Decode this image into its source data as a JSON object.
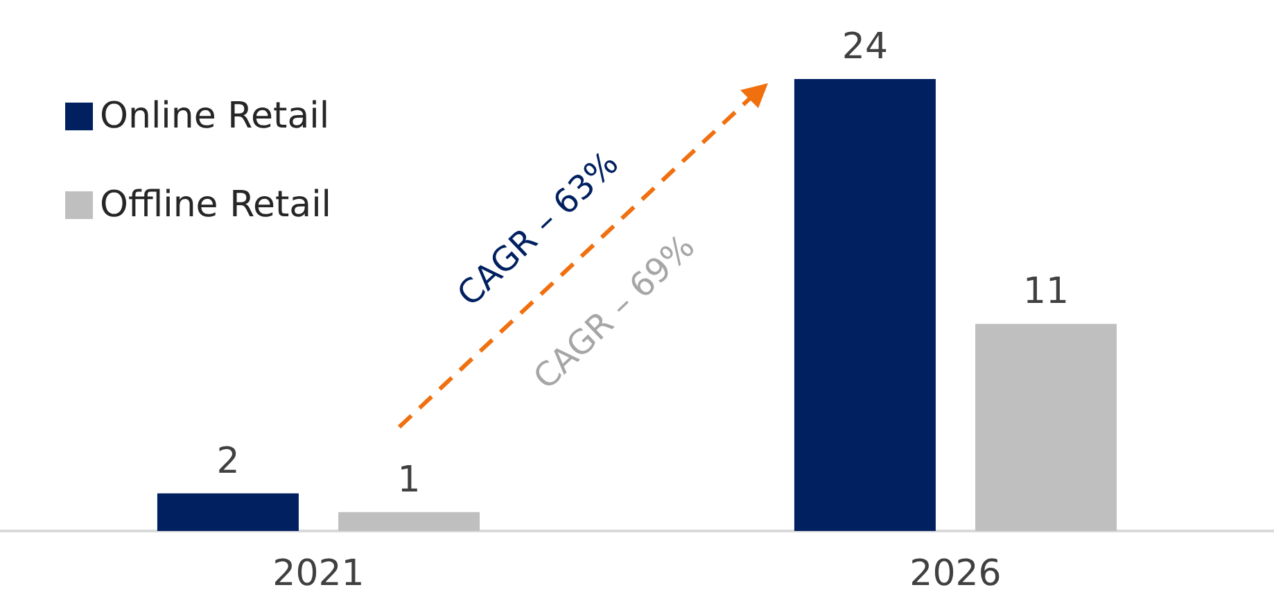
{
  "chart_data": {
    "type": "bar",
    "categories": [
      "2021",
      "2026"
    ],
    "series": [
      {
        "name": "Online Retail",
        "color": "#002060",
        "values": [
          2,
          24
        ]
      },
      {
        "name": "Offline Retail",
        "color": "#bfbfbf",
        "values": [
          1,
          11
        ]
      }
    ],
    "data_labels": true,
    "legend": "top left",
    "grid": false,
    "annotations": [
      "CAGR – 63%",
      "CAGR – 69%"
    ]
  }
}
